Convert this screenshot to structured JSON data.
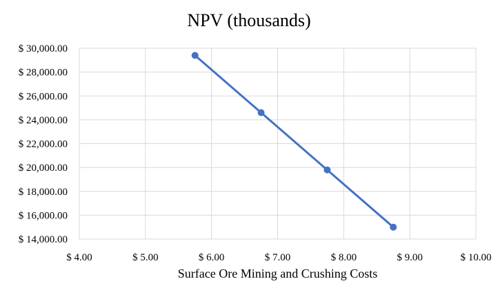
{
  "chart_data": {
    "type": "scatter",
    "title": "NPV (thousands)",
    "xlabel": "Surface Ore Mining and Crushing Costs",
    "ylabel": "",
    "xlim": [
      4.0,
      10.0
    ],
    "ylim": [
      14000,
      30000
    ],
    "x_ticks": [
      4,
      5,
      6,
      7,
      8,
      9,
      10
    ],
    "x_tick_labels": [
      "$ 4.00",
      "$ 5.00",
      "$ 6.00",
      "$ 7.00",
      "$ 8.00",
      "$ 9.00",
      "$ 10.00"
    ],
    "y_ticks": [
      14000,
      16000,
      18000,
      20000,
      22000,
      24000,
      26000,
      28000,
      30000
    ],
    "y_tick_labels": [
      "$ 14,000.00",
      "$ 16,000.00",
      "$ 18,000.00",
      "$ 20,000.00",
      "$ 22,000.00",
      "$ 24,000.00",
      "$ 26,000.00",
      "$ 28,000.00",
      "$ 30,000.00"
    ],
    "grid": true,
    "legend": "none",
    "series": [
      {
        "name": "NPV",
        "color": "#4472c4",
        "lines": true,
        "markers": true,
        "x": [
          5.75,
          6.75,
          7.75,
          8.75
        ],
        "y": [
          29400,
          24600,
          19800,
          15000
        ]
      }
    ]
  }
}
